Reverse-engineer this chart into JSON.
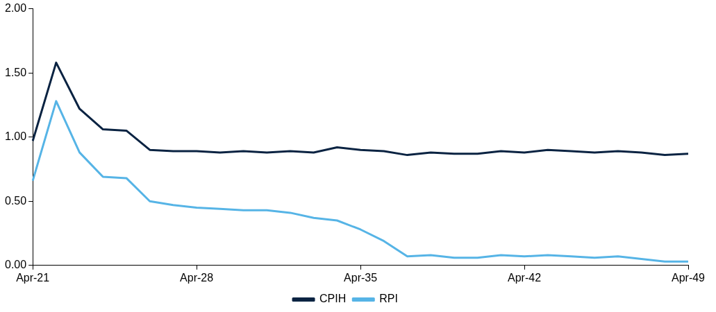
{
  "chart_data": {
    "type": "line",
    "categories": [
      "Apr-21",
      null,
      null,
      null,
      null,
      null,
      null,
      "Apr-28",
      null,
      null,
      null,
      null,
      null,
      null,
      "Apr-35",
      null,
      null,
      null,
      null,
      null,
      null,
      "Apr-42",
      null,
      null,
      null,
      null,
      null,
      null,
      "Apr-49"
    ],
    "series": [
      {
        "name": "CPIH",
        "color": "#0a2342",
        "values": [
          0.97,
          1.58,
          1.22,
          1.06,
          1.05,
          0.9,
          0.89,
          0.89,
          0.88,
          0.89,
          0.88,
          0.89,
          0.88,
          0.92,
          0.9,
          0.89,
          0.86,
          0.88,
          0.87,
          0.87,
          0.89,
          0.88,
          0.9,
          0.89,
          0.88,
          0.89,
          0.88,
          0.86,
          0.87
        ]
      },
      {
        "name": "RPI",
        "color": "#56b4e6",
        "values": [
          0.66,
          1.28,
          0.88,
          0.69,
          0.68,
          0.5,
          0.47,
          0.45,
          0.44,
          0.43,
          0.43,
          0.41,
          0.37,
          0.35,
          0.28,
          0.19,
          0.07,
          0.08,
          0.06,
          0.06,
          0.08,
          0.07,
          0.08,
          0.07,
          0.06,
          0.07,
          0.05,
          0.03,
          0.03
        ]
      }
    ],
    "ylim": [
      0,
      2
    ],
    "yticks": [
      {
        "value": 0,
        "label": "0.00"
      },
      {
        "value": 0.5,
        "label": "0.50"
      },
      {
        "value": 1,
        "label": "1.00"
      },
      {
        "value": 1.5,
        "label": "1.50"
      },
      {
        "value": 2,
        "label": "2.00"
      }
    ],
    "grid": false,
    "legend": "bottom",
    "marker": "none",
    "line_style": "solid"
  }
}
